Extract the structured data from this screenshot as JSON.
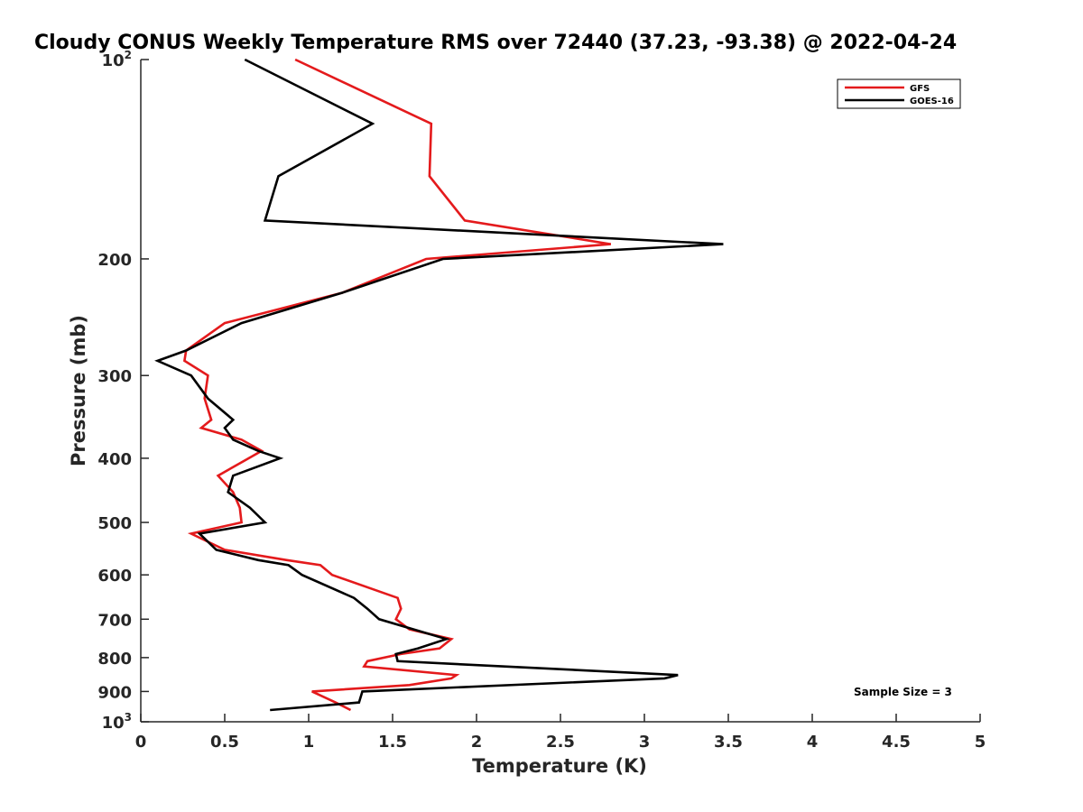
{
  "chart_data": {
    "type": "line",
    "title": "Cloudy CONUS Weekly Temperature RMS over 72440 (37.23, -93.38) @ 2022-04-24",
    "xlabel": "Temperature (K)",
    "ylabel": "Pressure (mb)",
    "xlim": [
      0,
      5
    ],
    "ylim": [
      100,
      1000
    ],
    "y_scale": "log",
    "y_reversed": true,
    "x_ticks": [
      "0",
      "0.5",
      "1",
      "1.5",
      "2",
      "2.5",
      "3",
      "3.5",
      "4",
      "4.5",
      "5"
    ],
    "y_ticks": [
      {
        "value": 100,
        "base": "10",
        "exp": "2"
      },
      {
        "value": 200,
        "label": "200"
      },
      {
        "value": 300,
        "label": "300"
      },
      {
        "value": 400,
        "label": "400"
      },
      {
        "value": 500,
        "label": "500"
      },
      {
        "value": 600,
        "label": "600"
      },
      {
        "value": 700,
        "label": "700"
      },
      {
        "value": 800,
        "label": "800"
      },
      {
        "value": 900,
        "label": "900"
      },
      {
        "value": 1000,
        "base": "10",
        "exp": "3"
      }
    ],
    "grid": false,
    "legend_position": "top-right",
    "annotation": "Sample Size = 3",
    "series": [
      {
        "name": "GFS",
        "color": "#e41a1c",
        "points": [
          [
            0.92,
            100
          ],
          [
            1.73,
            125
          ],
          [
            1.72,
            150
          ],
          [
            1.93,
            175
          ],
          [
            2.8,
            190
          ],
          [
            1.7,
            200
          ],
          [
            1.2,
            225
          ],
          [
            0.5,
            250
          ],
          [
            0.27,
            275
          ],
          [
            0.26,
            285
          ],
          [
            0.4,
            300
          ],
          [
            0.38,
            325
          ],
          [
            0.42,
            350
          ],
          [
            0.36,
            360
          ],
          [
            0.6,
            375
          ],
          [
            0.72,
            390
          ],
          [
            0.46,
            425
          ],
          [
            0.55,
            450
          ],
          [
            0.59,
            475
          ],
          [
            0.6,
            500
          ],
          [
            0.3,
            520
          ],
          [
            0.5,
            550
          ],
          [
            0.87,
            570
          ],
          [
            1.07,
            580
          ],
          [
            1.14,
            600
          ],
          [
            1.53,
            650
          ],
          [
            1.55,
            675
          ],
          [
            1.52,
            700
          ],
          [
            1.6,
            725
          ],
          [
            1.85,
            750
          ],
          [
            1.78,
            775
          ],
          [
            1.55,
            790
          ],
          [
            1.35,
            810
          ],
          [
            1.33,
            825
          ],
          [
            1.88,
            850
          ],
          [
            1.85,
            860
          ],
          [
            1.6,
            880
          ],
          [
            1.02,
            900
          ],
          [
            1.16,
            935
          ],
          [
            1.25,
            960
          ]
        ]
      },
      {
        "name": "GOES-16",
        "color": "#000000",
        "points": [
          [
            0.62,
            100
          ],
          [
            1.38,
            125
          ],
          [
            0.82,
            150
          ],
          [
            0.74,
            175
          ],
          [
            3.47,
            190
          ],
          [
            1.8,
            200
          ],
          [
            1.2,
            225
          ],
          [
            0.6,
            250
          ],
          [
            0.27,
            275
          ],
          [
            0.1,
            285
          ],
          [
            0.3,
            300
          ],
          [
            0.4,
            325
          ],
          [
            0.55,
            350
          ],
          [
            0.5,
            360
          ],
          [
            0.55,
            375
          ],
          [
            0.7,
            390
          ],
          [
            0.83,
            400
          ],
          [
            0.55,
            425
          ],
          [
            0.52,
            450
          ],
          [
            0.65,
            475
          ],
          [
            0.74,
            500
          ],
          [
            0.35,
            520
          ],
          [
            0.45,
            550
          ],
          [
            0.7,
            570
          ],
          [
            0.88,
            580
          ],
          [
            0.96,
            600
          ],
          [
            1.27,
            650
          ],
          [
            1.35,
            675
          ],
          [
            1.42,
            700
          ],
          [
            1.82,
            750
          ],
          [
            1.65,
            775
          ],
          [
            1.52,
            790
          ],
          [
            1.53,
            810
          ],
          [
            3.2,
            850
          ],
          [
            3.12,
            860
          ],
          [
            1.32,
            900
          ],
          [
            1.3,
            935
          ],
          [
            0.77,
            960
          ]
        ]
      }
    ]
  }
}
